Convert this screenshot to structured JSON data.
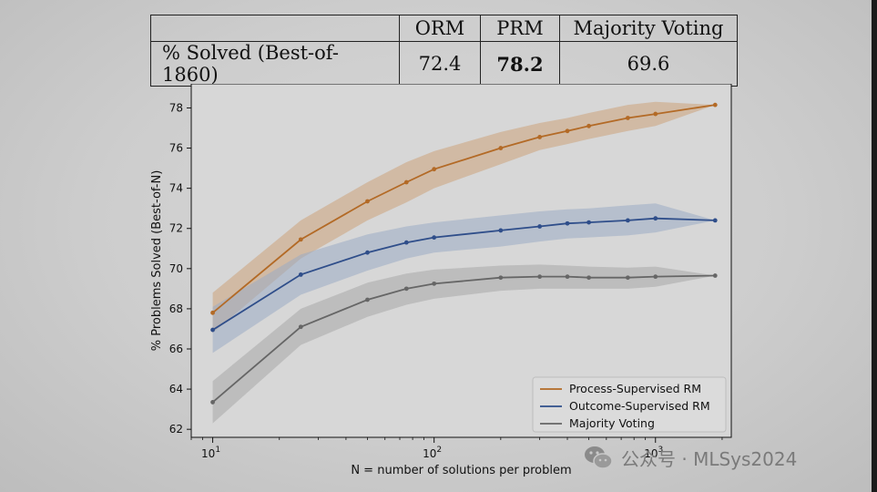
{
  "summary_table": {
    "headers": [
      "",
      "ORM",
      "PRM",
      "Majority Voting"
    ],
    "row_label": "% Solved (Best-of-1860)",
    "values": [
      "72.4",
      "78.2",
      "69.6"
    ],
    "bold_index": 1
  },
  "chart_data": {
    "type": "line",
    "title": "",
    "xlabel": "N = number of solutions per problem",
    "ylabel": "% Problems Solved (Best-of-N)",
    "x_scale": "log",
    "xlim": [
      8,
      2200
    ],
    "ylim": [
      61.6,
      79.2
    ],
    "x_ticks": [
      10,
      100,
      1000
    ],
    "x_tick_labels": [
      "10^1",
      "10^2",
      "10^3"
    ],
    "y_ticks": [
      62,
      64,
      66,
      68,
      70,
      72,
      74,
      76,
      78
    ],
    "grid": false,
    "legend_position": "bottom-right",
    "x": [
      10,
      25,
      50,
      75,
      100,
      200,
      300,
      400,
      500,
      750,
      1000,
      1860
    ],
    "series": [
      {
        "name": "Process-Supervised RM",
        "color": "#b36a26",
        "band_color": "#cca37a",
        "values": [
          67.8,
          71.45,
          73.35,
          74.3,
          74.95,
          76.0,
          76.55,
          76.85,
          77.1,
          77.5,
          77.7,
          78.15
        ],
        "lower": [
          66.8,
          70.5,
          72.4,
          73.3,
          74.0,
          75.2,
          75.9,
          76.2,
          76.45,
          76.85,
          77.1,
          78.15
        ],
        "upper": [
          68.8,
          72.4,
          74.3,
          75.3,
          75.85,
          76.8,
          77.25,
          77.5,
          77.75,
          78.15,
          78.3,
          78.15
        ]
      },
      {
        "name": "Outcome-Supervised RM",
        "color": "#2f4e8a",
        "band_color": "#9aabc4",
        "values": [
          66.95,
          69.7,
          70.8,
          71.3,
          71.55,
          71.9,
          72.1,
          72.25,
          72.3,
          72.4,
          72.5,
          72.4
        ],
        "lower": [
          65.8,
          68.7,
          69.9,
          70.5,
          70.8,
          71.1,
          71.35,
          71.5,
          71.55,
          71.65,
          71.8,
          72.4
        ],
        "upper": [
          68.1,
          70.7,
          71.7,
          72.1,
          72.3,
          72.65,
          72.85,
          72.95,
          73.0,
          73.15,
          73.25,
          72.4
        ]
      },
      {
        "name": "Majority Voting",
        "color": "#666666",
        "band_color": "#a8a8a8",
        "values": [
          63.35,
          67.1,
          68.45,
          69.0,
          69.25,
          69.55,
          69.6,
          69.6,
          69.55,
          69.55,
          69.6,
          69.65
        ],
        "lower": [
          62.3,
          66.2,
          67.6,
          68.2,
          68.5,
          68.9,
          69.0,
          69.0,
          69.0,
          69.0,
          69.1,
          69.65
        ],
        "upper": [
          64.4,
          68.0,
          69.3,
          69.75,
          69.95,
          70.15,
          70.2,
          70.15,
          70.1,
          70.05,
          70.1,
          69.65
        ]
      }
    ]
  },
  "watermark": {
    "text": "公众号 · MLSys2024",
    "icon": "wechat-icon"
  }
}
